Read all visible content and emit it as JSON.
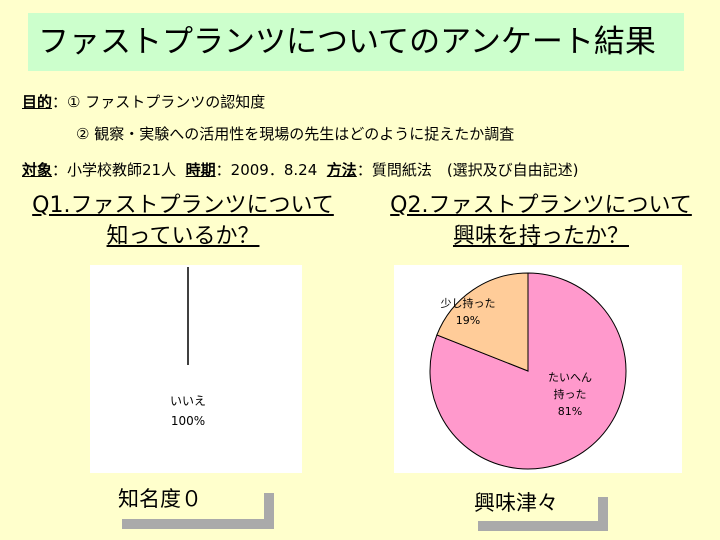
{
  "title": "ファストプランツについてのアンケート結果",
  "purpose": {
    "label": "目的",
    "item1": "：① ファストプランツの認知度",
    "item2": "② 観察・実験への活用性を現場の先生はどのように捉えたか調査"
  },
  "meta": {
    "target_label": "対象",
    "target_value": "：小学校教師21人",
    "period_label": "時期",
    "period_value": "：2009．8.24",
    "method_label": "方法",
    "method_value": "：質問紙法　(選択及び自由記述)"
  },
  "q1": {
    "line1": "Q1.ファストプランツについて",
    "line2": "知っているか？",
    "caption": "知名度０"
  },
  "q2": {
    "line1": "Q2.ファストプランツについて",
    "line2": "興味を持ったか？",
    "caption": "興味津々"
  },
  "chart_data": [
    {
      "type": "pie",
      "title": "",
      "slices": [
        {
          "label": "いいえ",
          "value": 100,
          "display": "100%",
          "color": "#ffffff"
        }
      ]
    },
    {
      "type": "pie",
      "title": "",
      "slices": [
        {
          "label": "たいへん持った",
          "label_lines": [
            "たいへん",
            "持った"
          ],
          "value": 81,
          "display": "81%",
          "color": "#ff99cc"
        },
        {
          "label": "少し持った",
          "label_lines": [
            "少し持った"
          ],
          "value": 19,
          "display": "19%",
          "color": "#ffcc99"
        }
      ]
    }
  ]
}
